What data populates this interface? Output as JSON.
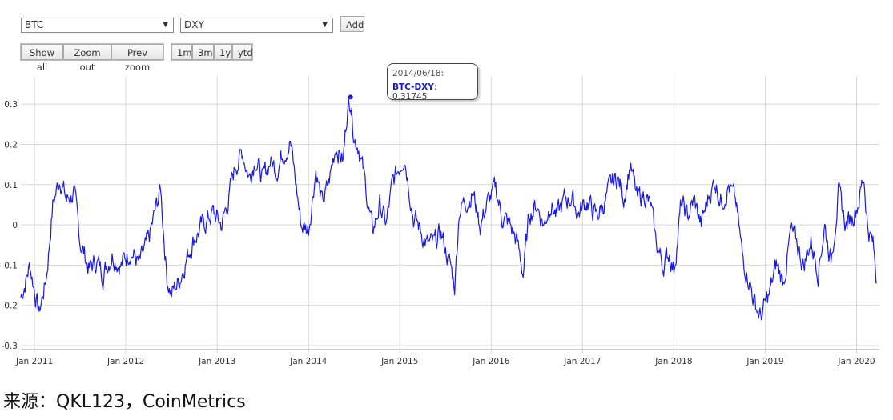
{
  "controls": {
    "series1": "BTC",
    "series2": "DXY",
    "add_label": "Add",
    "show_all": "Show all",
    "zoom_out": "Zoom out",
    "prev_zoom": "Prev zoom",
    "ranges": [
      "1m",
      "3m",
      "1y",
      "ytd"
    ]
  },
  "tooltip": {
    "date": "2014/06/18:",
    "series": "BTC-DXY",
    "value": ": 0.31745"
  },
  "source": "来源：QKL123，CoinMetrics",
  "colors": {
    "line": "#1a1ae6",
    "grid": "#d8d8d8"
  },
  "chart_data": {
    "type": "line",
    "title": "",
    "xlabel": "",
    "ylabel": "",
    "x_range": [
      2010.85,
      2020.25
    ],
    "ylim": [
      -0.31,
      0.37
    ],
    "yticks": [
      0.3,
      0.2,
      0.1,
      0,
      -0.1,
      -0.2,
      -0.3
    ],
    "ytick_labels": [
      "0.3",
      "0.2",
      "0.1",
      "0",
      "-0.1",
      "-0.2",
      "-0.3"
    ],
    "xticks": [
      2011,
      2012,
      2013,
      2014,
      2015,
      2016,
      2017,
      2018,
      2019,
      2020
    ],
    "xtick_labels": [
      "Jan 2011",
      "Jan 2012",
      "Jan 2013",
      "Jan 2014",
      "Jan 2015",
      "Jan 2016",
      "Jan 2017",
      "Jan 2018",
      "Jan 2019",
      "Jan 2020"
    ],
    "grid": true,
    "highlight": {
      "x": 2014.46,
      "y": 0.31745
    },
    "series": [
      {
        "name": "BTC-DXY",
        "x": [
          2010.85,
          2010.95,
          2011.05,
          2011.13,
          2011.2,
          2011.28,
          2011.35,
          2011.43,
          2011.5,
          2011.6,
          2011.68,
          2011.75,
          2011.85,
          2011.95,
          2012.05,
          2012.15,
          2012.25,
          2012.32,
          2012.38,
          2012.45,
          2012.5,
          2012.58,
          2012.65,
          2012.75,
          2012.85,
          2012.95,
          2013.05,
          2013.12,
          2013.2,
          2013.28,
          2013.35,
          2013.42,
          2013.5,
          2013.58,
          2013.65,
          2013.72,
          2013.8,
          2013.85,
          2013.92,
          2014.0,
          2014.08,
          2014.15,
          2014.22,
          2014.3,
          2014.38,
          2014.42,
          2014.46,
          2014.5,
          2014.55,
          2014.62,
          2014.7,
          2014.78,
          2014.85,
          2014.92,
          2015.0,
          2015.05,
          2015.1,
          2015.15,
          2015.22,
          2015.3,
          2015.38,
          2015.45,
          2015.5,
          2015.55,
          2015.6,
          2015.65,
          2015.72,
          2015.8,
          2015.88,
          2015.95,
          2016.05,
          2016.12,
          2016.2,
          2016.28,
          2016.35,
          2016.42,
          2016.5,
          2016.58,
          2016.65,
          2016.72,
          2016.8,
          2016.88,
          2016.95,
          2017.05,
          2017.15,
          2017.25,
          2017.32,
          2017.38,
          2017.45,
          2017.52,
          2017.6,
          2017.68,
          2017.75,
          2017.8,
          2017.88,
          2017.95,
          2018.0,
          2018.08,
          2018.15,
          2018.22,
          2018.3,
          2018.38,
          2018.45,
          2018.52,
          2018.6,
          2018.68,
          2018.75,
          2018.82,
          2018.88,
          2018.95,
          2019.0,
          2019.05,
          2019.12,
          2019.2,
          2019.28,
          2019.35,
          2019.42,
          2019.5,
          2019.58,
          2019.65,
          2019.72,
          2019.8,
          2019.88,
          2019.95,
          2020.02,
          2020.08,
          2020.12,
          2020.18,
          2020.22
        ],
        "y": [
          -0.18,
          -0.1,
          -0.22,
          -0.13,
          0.05,
          0.12,
          0.06,
          0.08,
          -0.04,
          -0.11,
          -0.09,
          -0.12,
          -0.07,
          -0.1,
          -0.06,
          -0.1,
          -0.04,
          0.03,
          0.09,
          -0.13,
          -0.17,
          -0.14,
          -0.09,
          -0.03,
          0.0,
          0.03,
          0.0,
          0.06,
          0.15,
          0.18,
          0.12,
          0.17,
          0.11,
          0.16,
          0.14,
          0.18,
          0.21,
          0.12,
          0.0,
          -0.01,
          0.14,
          0.05,
          0.1,
          0.2,
          0.16,
          0.28,
          0.31745,
          0.22,
          0.2,
          0.1,
          -0.02,
          0.05,
          0.0,
          0.1,
          0.15,
          0.18,
          0.1,
          0.02,
          -0.01,
          -0.05,
          -0.05,
          -0.02,
          -0.06,
          -0.1,
          -0.15,
          0.04,
          0.06,
          0.08,
          0.0,
          0.05,
          0.09,
          0.02,
          0.0,
          -0.04,
          -0.12,
          0.03,
          0.05,
          0.0,
          0.06,
          0.02,
          0.06,
          0.07,
          0.03,
          0.06,
          0.02,
          0.06,
          0.1,
          0.12,
          0.07,
          0.15,
          0.06,
          0.08,
          0.04,
          -0.04,
          -0.1,
          -0.07,
          -0.11,
          0.05,
          0.02,
          0.06,
          0.0,
          0.07,
          0.11,
          0.06,
          0.1,
          0.05,
          -0.08,
          -0.13,
          -0.19,
          -0.23,
          -0.2,
          -0.17,
          -0.1,
          -0.14,
          -0.02,
          -0.05,
          -0.1,
          -0.04,
          -0.11,
          0.0,
          -0.09,
          0.08,
          0.0,
          0.02,
          0.06,
          0.12,
          0.0,
          -0.05,
          -0.14
        ]
      }
    ]
  }
}
